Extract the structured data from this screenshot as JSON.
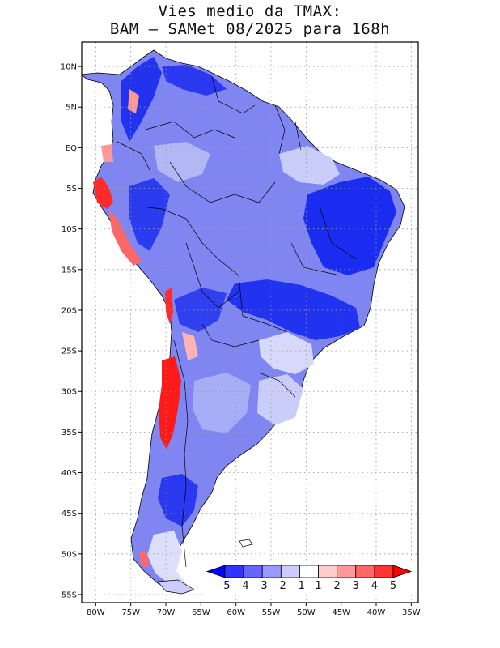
{
  "title": {
    "line1": "Vies medio da TMAX:",
    "line2": "BAM – SAMet 08/2025  para 168h"
  },
  "map": {
    "region": "South America",
    "variable": "Mean bias of maximum temperature (TMAX)",
    "lon_range": [
      -82,
      -34
    ],
    "lat_range": [
      -56,
      13
    ],
    "lat_ticks": [
      {
        "value": 10,
        "label": "10N"
      },
      {
        "value": 5,
        "label": "5N"
      },
      {
        "value": 0,
        "label": "EQ"
      },
      {
        "value": -5,
        "label": "5S"
      },
      {
        "value": -10,
        "label": "10S"
      },
      {
        "value": -15,
        "label": "15S"
      },
      {
        "value": -20,
        "label": "20S"
      },
      {
        "value": -25,
        "label": "25S"
      },
      {
        "value": -30,
        "label": "30S"
      },
      {
        "value": -35,
        "label": "35S"
      },
      {
        "value": -40,
        "label": "40S"
      },
      {
        "value": -45,
        "label": "45S"
      },
      {
        "value": -50,
        "label": "50S"
      },
      {
        "value": -55,
        "label": "55S"
      }
    ],
    "lon_ticks": [
      {
        "value": -80,
        "label": "80W"
      },
      {
        "value": -75,
        "label": "75W"
      },
      {
        "value": -70,
        "label": "70W"
      },
      {
        "value": -65,
        "label": "65W"
      },
      {
        "value": -60,
        "label": "60W"
      },
      {
        "value": -55,
        "label": "55W"
      },
      {
        "value": -50,
        "label": "50W"
      },
      {
        "value": -45,
        "label": "45W"
      },
      {
        "value": -40,
        "label": "40W"
      },
      {
        "value": -35,
        "label": "35W"
      }
    ]
  },
  "colorbar": {
    "labels": [
      "-5",
      "-4",
      "-3",
      "-2",
      "-1",
      "1",
      "2",
      "3",
      "4",
      "5"
    ],
    "colors": [
      "#0000ff",
      "#3333ff",
      "#6666ff",
      "#9999ff",
      "#ccccff",
      "#ffffff",
      "#ffcccc",
      "#ff9999",
      "#ff6666",
      "#ff3333",
      "#ff0000"
    ],
    "colors_note": "first = below -5 arrow, last = above 5 arrow"
  },
  "colors": {
    "land_base": "#7f86f2",
    "strong_cold": "#1a2cf0",
    "mild_cold": "#c9cdf7",
    "warm": "#ff2a2a",
    "border": "#000000",
    "grid": "#999999"
  }
}
